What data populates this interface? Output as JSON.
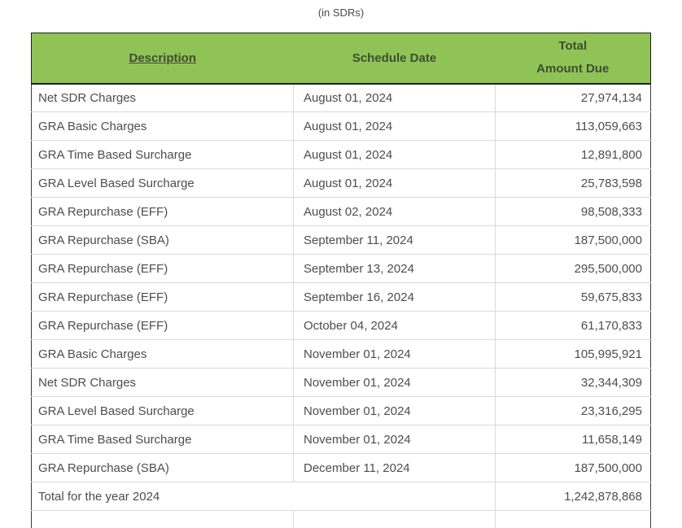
{
  "page": {
    "title": "(in SDRs)"
  },
  "colors": {
    "header_bg": "#90c355",
    "header_text": "#3e4d33",
    "cell_text": "#4d4d4d",
    "grid_line": "#d9d9d9",
    "outer_border": "#1f1f1f"
  },
  "table": {
    "header": {
      "description": "Description",
      "schedule_date": "Schedule Date",
      "amount_line1": "Total",
      "amount_line2": "Amount Due"
    },
    "rows": [
      {
        "description": "Net SDR Charges",
        "schedule_date": "August 01, 2024",
        "amount": "27,974,134"
      },
      {
        "description": "GRA Basic Charges",
        "schedule_date": "August 01, 2024",
        "amount": "113,059,663"
      },
      {
        "description": "GRA Time Based Surcharge",
        "schedule_date": "August 01, 2024",
        "amount": "12,891,800"
      },
      {
        "description": "GRA Level Based Surcharge",
        "schedule_date": "August 01, 2024",
        "amount": "25,783,598"
      },
      {
        "description": "GRA Repurchase (EFF)",
        "schedule_date": "August 02, 2024",
        "amount": "98,508,333"
      },
      {
        "description": "GRA Repurchase (SBA)",
        "schedule_date": "September 11, 2024",
        "amount": "187,500,000"
      },
      {
        "description": "GRA Repurchase (EFF)",
        "schedule_date": "September 13, 2024",
        "amount": "295,500,000"
      },
      {
        "description": "GRA Repurchase (EFF)",
        "schedule_date": "September 16, 2024",
        "amount": "59,675,833"
      },
      {
        "description": "GRA Repurchase (EFF)",
        "schedule_date": "October 04, 2024",
        "amount": "61,170,833"
      },
      {
        "description": "GRA Basic Charges",
        "schedule_date": "November 01, 2024",
        "amount": "105,995,921"
      },
      {
        "description": "Net SDR Charges",
        "schedule_date": "November 01, 2024",
        "amount": "32,344,309"
      },
      {
        "description": "GRA Level Based Surcharge",
        "schedule_date": "November 01, 2024",
        "amount": "23,316,295"
      },
      {
        "description": "GRA Time Based Surcharge",
        "schedule_date": "November 01, 2024",
        "amount": "11,658,149"
      },
      {
        "description": "GRA Repurchase (SBA)",
        "schedule_date": "December 11, 2024",
        "amount": "187,500,000"
      }
    ],
    "total": {
      "label": "Total for the year 2024",
      "amount": "1,242,878,868"
    }
  }
}
